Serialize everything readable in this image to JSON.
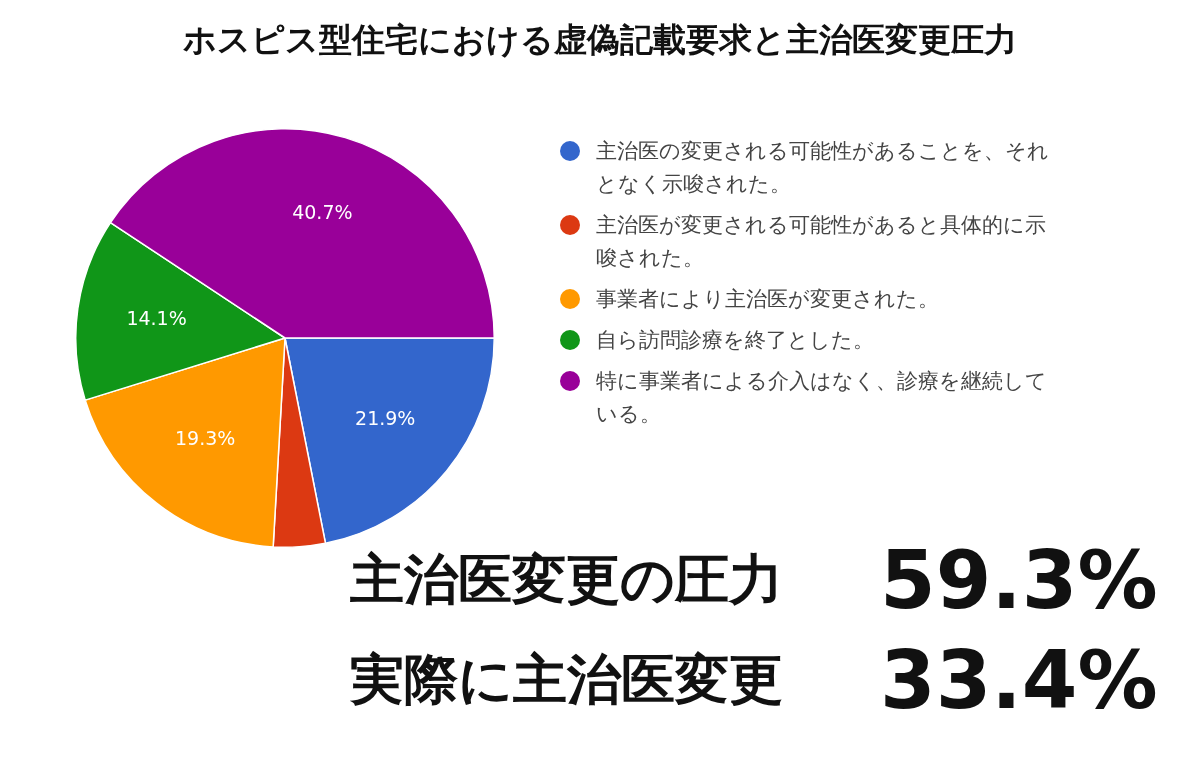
{
  "chart_data": {
    "type": "pie",
    "title": "ホスピス型住宅における虚偽記載要求と主治医変更圧力",
    "categories": [
      "主治医の変更される可能性があることを、それとなく示唆された。",
      "主治医が変更される可能性があると具体的に示唆された。",
      "事業者により主治医が変更された。",
      "自ら訪問診療を終了とした。",
      "特に事業者による介入はなく、診療を継続している。"
    ],
    "values": [
      21.9,
      4.0,
      19.3,
      14.1,
      40.7
    ],
    "value_labels": [
      "21.9%",
      null,
      "19.3%",
      "14.1%",
      "40.7%"
    ],
    "colors": [
      "#3366cc",
      "#dc3912",
      "#ff9900",
      "#109618",
      "#990099"
    ],
    "legend": "right",
    "annotations": [
      "主治医変更の圧力",
      "59.3%",
      "実際に主治医変更",
      "33.4%"
    ]
  }
}
